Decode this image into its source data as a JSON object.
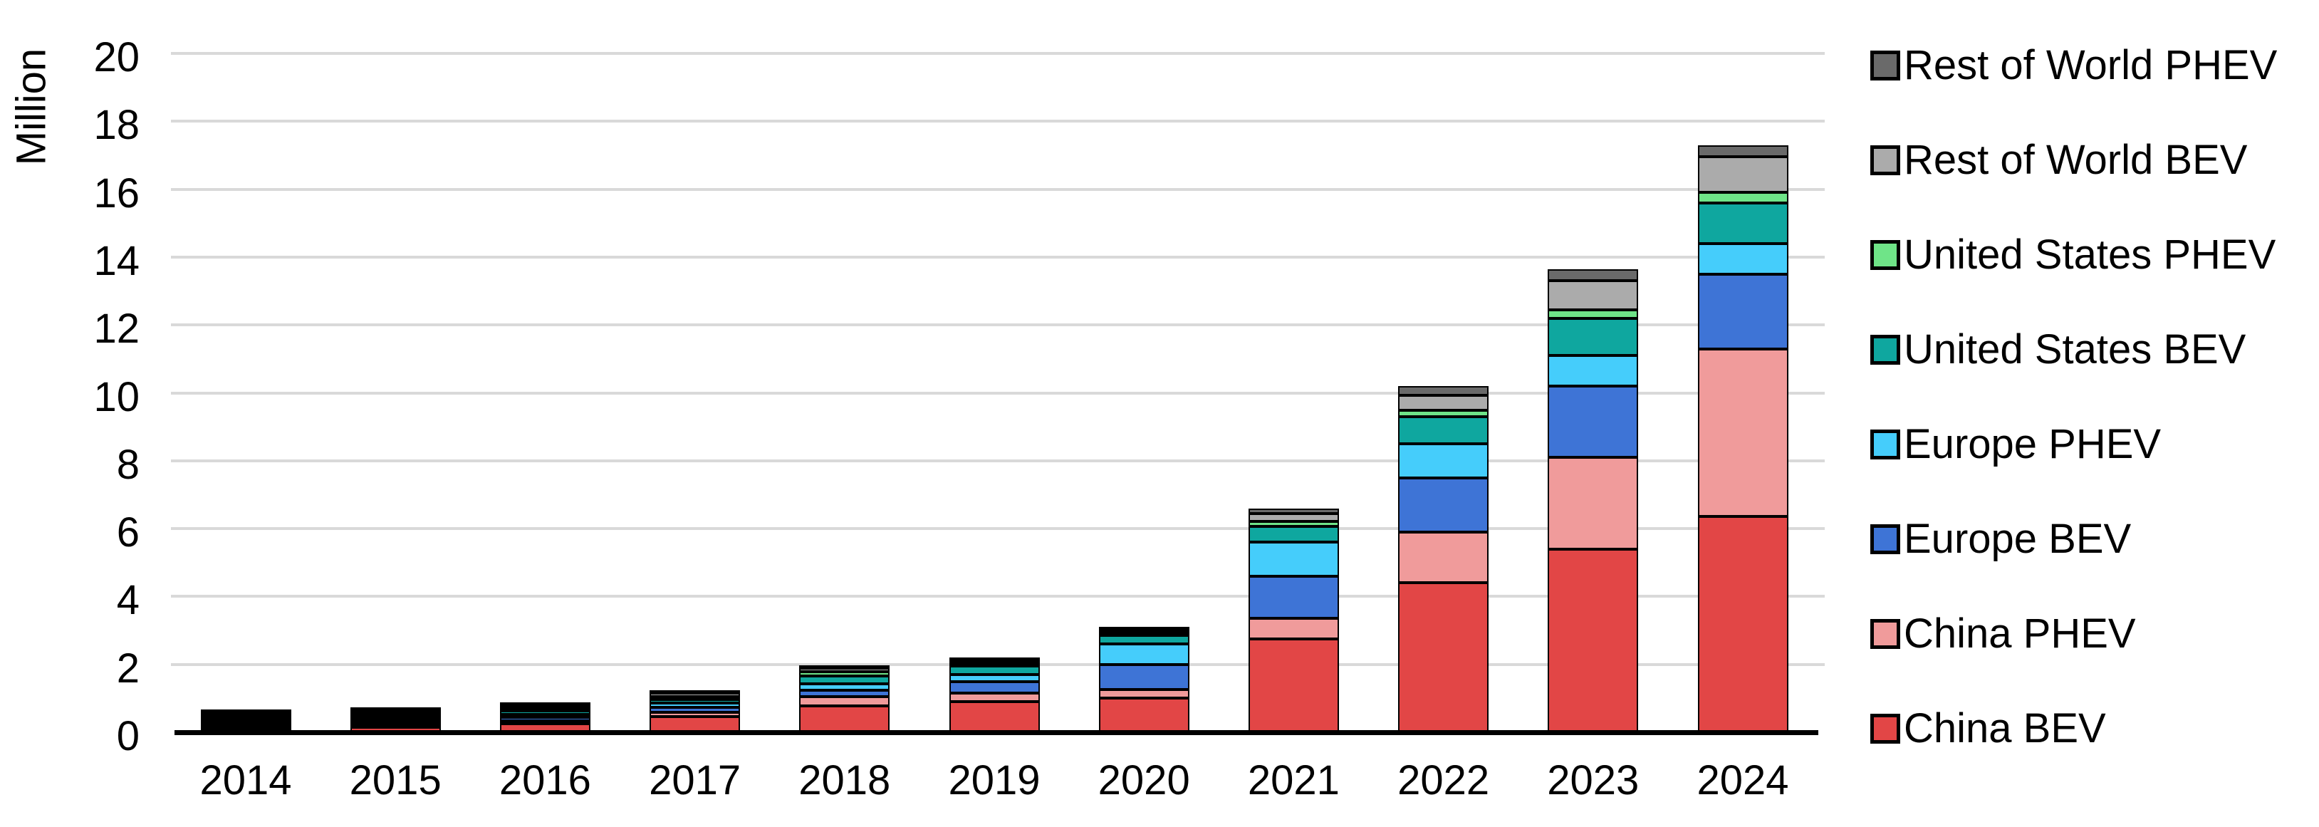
{
  "chart_data": {
    "type": "bar",
    "stacked": true,
    "title": "",
    "xlabel": "",
    "ylabel": "Million",
    "ylim": [
      0,
      20
    ],
    "y_ticks": [
      0,
      2,
      4,
      6,
      8,
      10,
      12,
      14,
      16,
      18,
      20
    ],
    "grid": true,
    "legend_position": "right",
    "categories": [
      "2014",
      "2015",
      "2016",
      "2017",
      "2018",
      "2019",
      "2020",
      "2021",
      "2022",
      "2023",
      "2024"
    ],
    "series": [
      {
        "name": "China BEV",
        "color": "#e24646",
        "values": [
          0.05,
          0.15,
          0.26,
          0.47,
          0.77,
          0.9,
          1.0,
          2.75,
          4.4,
          5.4,
          6.35
        ]
      },
      {
        "name": "China PHEV",
        "color": "#f09b9b",
        "values": [
          0.03,
          0.06,
          0.08,
          0.11,
          0.27,
          0.25,
          0.25,
          0.6,
          1.5,
          2.7,
          4.95
        ]
      },
      {
        "name": "Europe BEV",
        "color": "#3e74d6",
        "values": [
          0.06,
          0.09,
          0.09,
          0.15,
          0.2,
          0.35,
          0.75,
          1.25,
          1.6,
          2.1,
          2.2
        ]
      },
      {
        "name": "Europe PHEV",
        "color": "#45cdfb",
        "values": [
          0.04,
          0.08,
          0.1,
          0.14,
          0.18,
          0.2,
          0.6,
          1.0,
          1.0,
          0.9,
          0.9
        ]
      },
      {
        "name": "United States BEV",
        "color": "#0fa79f",
        "values": [
          0.06,
          0.07,
          0.09,
          0.1,
          0.24,
          0.25,
          0.25,
          0.47,
          0.8,
          1.1,
          1.2
        ]
      },
      {
        "name": "United States PHEV",
        "color": "#6fe488",
        "values": [
          0.05,
          0.04,
          0.07,
          0.09,
          0.12,
          0.08,
          0.07,
          0.15,
          0.18,
          0.25,
          0.3
        ]
      },
      {
        "name": "Rest of World BEV",
        "color": "#ababab",
        "values": [
          0.04,
          0.04,
          0.06,
          0.1,
          0.11,
          0.08,
          0.08,
          0.23,
          0.45,
          0.85,
          1.05
        ]
      },
      {
        "name": "Rest of World PHEV",
        "color": "#6a6a6a",
        "values": [
          0.02,
          0.02,
          0.03,
          0.06,
          0.08,
          0.05,
          0.05,
          0.15,
          0.27,
          0.35,
          0.35
        ]
      }
    ],
    "legend_top_to_bottom": [
      "Rest of World PHEV",
      "Rest of World BEV",
      "United States PHEV",
      "United States BEV",
      "Europe PHEV",
      "Europe BEV",
      "China PHEV",
      "China BEV"
    ],
    "style": {
      "gridline_color": "#d9d9d9",
      "axis_color": "#000000",
      "segment_border_color": "#000000",
      "text_color": "#000000"
    }
  }
}
